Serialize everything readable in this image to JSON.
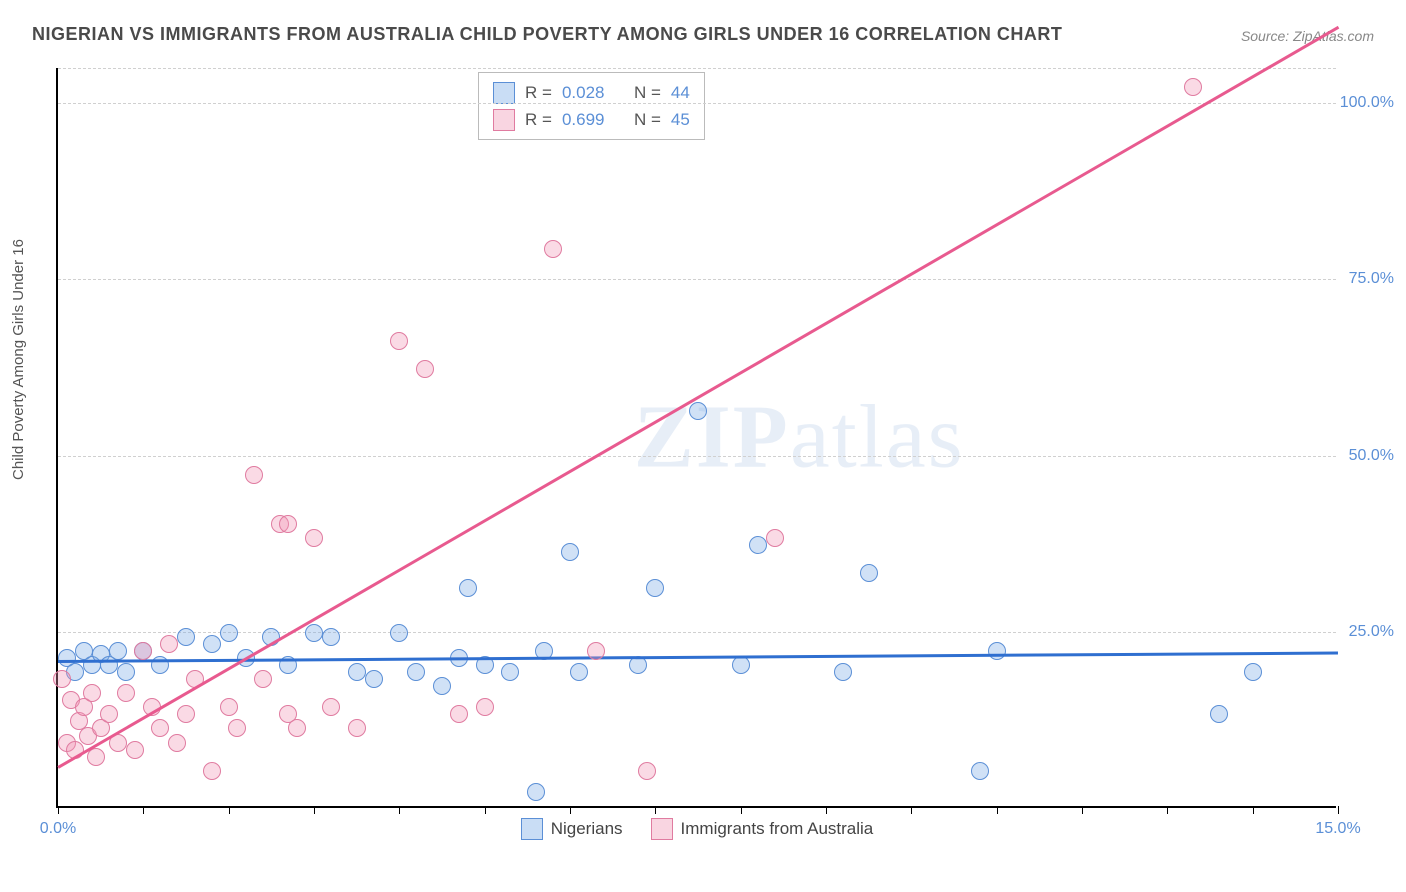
{
  "title": "NIGERIAN VS IMMIGRANTS FROM AUSTRALIA CHILD POVERTY AMONG GIRLS UNDER 16 CORRELATION CHART",
  "source": "Source: ZipAtlas.com",
  "y_axis_label": "Child Poverty Among Girls Under 16",
  "watermark": {
    "bold": "ZIP",
    "rest": "atlas"
  },
  "chart": {
    "type": "scatter",
    "xlim": [
      0,
      15
    ],
    "ylim": [
      0,
      105
    ],
    "x_ticks": [
      0,
      5,
      10,
      15
    ],
    "x_tick_labels": [
      "0.0%",
      "",
      "",
      "15.0%"
    ],
    "y_ticks": [
      25,
      50,
      75,
      100
    ],
    "y_tick_labels": [
      "25.0%",
      "50.0%",
      "75.0%",
      "100.0%"
    ],
    "grid_color": "#d0d0d0",
    "background_color": "#ffffff",
    "marker_size": 18,
    "series": [
      {
        "name": "Nigerians",
        "color_fill": "rgba(120,170,230,0.35)",
        "color_stroke": "#5b8fd6",
        "r": 0.028,
        "n": 44,
        "trend": {
          "slope": 0.08,
          "intercept": 21,
          "color": "#2f6fd0"
        },
        "points": [
          [
            0.1,
            21
          ],
          [
            0.2,
            19
          ],
          [
            0.3,
            22
          ],
          [
            0.4,
            20
          ],
          [
            0.5,
            21.5
          ],
          [
            0.6,
            20
          ],
          [
            0.7,
            22
          ],
          [
            0.8,
            19
          ],
          [
            1.0,
            22
          ],
          [
            1.2,
            20
          ],
          [
            1.5,
            24
          ],
          [
            1.8,
            23
          ],
          [
            2.0,
            24.5
          ],
          [
            2.2,
            21
          ],
          [
            2.5,
            24
          ],
          [
            2.7,
            20
          ],
          [
            3.0,
            24.5
          ],
          [
            3.2,
            24
          ],
          [
            3.5,
            19
          ],
          [
            3.7,
            18
          ],
          [
            4.0,
            24.5
          ],
          [
            4.2,
            19
          ],
          [
            4.5,
            17
          ],
          [
            4.7,
            21
          ],
          [
            4.8,
            31
          ],
          [
            5.0,
            20
          ],
          [
            5.3,
            19
          ],
          [
            5.6,
            2
          ],
          [
            5.7,
            22
          ],
          [
            6.0,
            36
          ],
          [
            6.1,
            19
          ],
          [
            6.8,
            20
          ],
          [
            7.0,
            31
          ],
          [
            7.5,
            56
          ],
          [
            8.0,
            20
          ],
          [
            8.2,
            37
          ],
          [
            9.2,
            19
          ],
          [
            9.5,
            33
          ],
          [
            10.8,
            5
          ],
          [
            11.0,
            22
          ],
          [
            13.6,
            13
          ],
          [
            14.0,
            19
          ]
        ]
      },
      {
        "name": "Immigrants from Australia",
        "color_fill": "rgba(240,150,180,0.35)",
        "color_stroke": "#e07ba0",
        "r": 0.699,
        "n": 45,
        "trend": {
          "slope": 7.0,
          "intercept": 6,
          "color": "#e85a8f"
        },
        "points": [
          [
            0.05,
            18
          ],
          [
            0.1,
            9
          ],
          [
            0.15,
            15
          ],
          [
            0.2,
            8
          ],
          [
            0.25,
            12
          ],
          [
            0.3,
            14
          ],
          [
            0.35,
            10
          ],
          [
            0.4,
            16
          ],
          [
            0.45,
            7
          ],
          [
            0.5,
            11
          ],
          [
            0.6,
            13
          ],
          [
            0.7,
            9
          ],
          [
            0.8,
            16
          ],
          [
            0.9,
            8
          ],
          [
            1.0,
            22
          ],
          [
            1.1,
            14
          ],
          [
            1.2,
            11
          ],
          [
            1.3,
            23
          ],
          [
            1.4,
            9
          ],
          [
            1.5,
            13
          ],
          [
            1.6,
            18
          ],
          [
            1.8,
            5
          ],
          [
            2.0,
            14
          ],
          [
            2.1,
            11
          ],
          [
            2.3,
            47
          ],
          [
            2.4,
            18
          ],
          [
            2.6,
            40
          ],
          [
            2.7,
            40
          ],
          [
            2.7,
            13
          ],
          [
            2.8,
            11
          ],
          [
            3.0,
            38
          ],
          [
            3.2,
            14
          ],
          [
            3.5,
            11
          ],
          [
            4.0,
            66
          ],
          [
            4.3,
            62
          ],
          [
            4.7,
            13
          ],
          [
            5.0,
            14
          ],
          [
            5.8,
            79
          ],
          [
            6.3,
            22
          ],
          [
            6.9,
            5
          ],
          [
            8.4,
            38
          ],
          [
            13.3,
            102
          ]
        ]
      }
    ],
    "legend_labels": [
      "Nigerians",
      "Immigrants from Australia"
    ],
    "stats_box": {
      "r_label": "R =",
      "n_label": "N ="
    }
  }
}
